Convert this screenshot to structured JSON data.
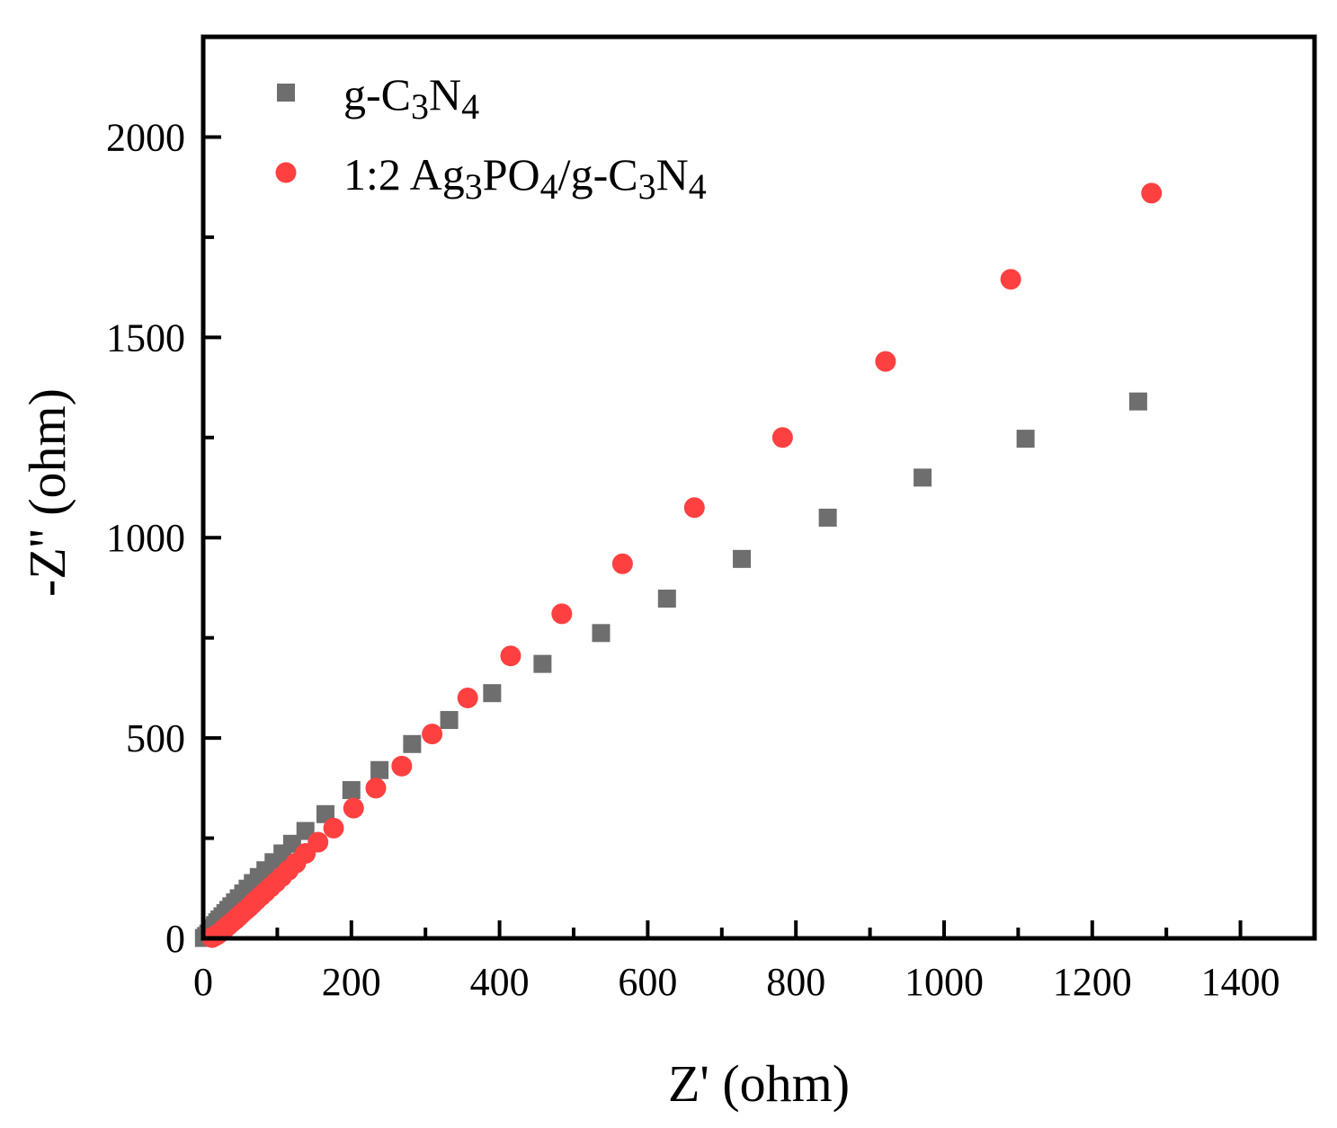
{
  "chart_data": {
    "type": "scatter",
    "title": "",
    "xlabel": "Z' (ohm)",
    "ylabel": "-Z'' (ohm)",
    "xlim": [
      0,
      1500
    ],
    "ylim": [
      0,
      2250
    ],
    "xticks": [
      0,
      200,
      400,
      600,
      800,
      1000,
      1200,
      1400
    ],
    "yticks": [
      0,
      500,
      1000,
      1500,
      2000
    ],
    "legend_position": "top-left",
    "series": [
      {
        "name": "g-C3N4",
        "label_parts": [
          {
            "t": "g-C"
          },
          {
            "t": "3",
            "sub": true
          },
          {
            "t": "N"
          },
          {
            "t": "4",
            "sub": true
          }
        ],
        "marker": "square",
        "color": "#6e6e6e",
        "points": [
          [
            1,
            1
          ],
          [
            4,
            6
          ],
          [
            7,
            12
          ],
          [
            10,
            19
          ],
          [
            13,
            26
          ],
          [
            16,
            33
          ],
          [
            19,
            40
          ],
          [
            22,
            47
          ],
          [
            26,
            55
          ],
          [
            30,
            63
          ],
          [
            34,
            71
          ],
          [
            38,
            80
          ],
          [
            43,
            90
          ],
          [
            48,
            100
          ],
          [
            54,
            112
          ],
          [
            60,
            124
          ],
          [
            67,
            138
          ],
          [
            75,
            153
          ],
          [
            84,
            170
          ],
          [
            95,
            190
          ],
          [
            107,
            212
          ],
          [
            120,
            236
          ],
          [
            138,
            268
          ],
          [
            165,
            310
          ],
          [
            200,
            370
          ],
          [
            238,
            420
          ],
          [
            282,
            485
          ],
          [
            332,
            545
          ],
          [
            390,
            612
          ],
          [
            458,
            685
          ],
          [
            537,
            762
          ],
          [
            626,
            848
          ],
          [
            727,
            947
          ],
          [
            843,
            1050
          ],
          [
            971,
            1150
          ],
          [
            1110,
            1247
          ],
          [
            1262,
            1340
          ]
        ]
      },
      {
        "name": "1:2 Ag3PO4/g-C3N4",
        "label_parts": [
          {
            "t": "1:2 Ag"
          },
          {
            "t": "3",
            "sub": true
          },
          {
            "t": "PO"
          },
          {
            "t": "4",
            "sub": true
          },
          {
            "t": "/g-C"
          },
          {
            "t": "3",
            "sub": true
          },
          {
            "t": "N"
          },
          {
            "t": "4",
            "sub": true
          }
        ],
        "marker": "circle",
        "color": "#ff4040",
        "points": [
          [
            12,
            2
          ],
          [
            15,
            5
          ],
          [
            18,
            8
          ],
          [
            21,
            12
          ],
          [
            24,
            16
          ],
          [
            27,
            21
          ],
          [
            30,
            26
          ],
          [
            33,
            31
          ],
          [
            36,
            36
          ],
          [
            40,
            42
          ],
          [
            44,
            48
          ],
          [
            48,
            55
          ],
          [
            52,
            62
          ],
          [
            57,
            70
          ],
          [
            62,
            78
          ],
          [
            67,
            87
          ],
          [
            72,
            96
          ],
          [
            78,
            106
          ],
          [
            84,
            116
          ],
          [
            91,
            128
          ],
          [
            98,
            140
          ],
          [
            106,
            154
          ],
          [
            115,
            170
          ],
          [
            125,
            188
          ],
          [
            138,
            212
          ],
          [
            155,
            240
          ],
          [
            176,
            275
          ],
          [
            203,
            325
          ],
          [
            233,
            375
          ],
          [
            268,
            430
          ],
          [
            309,
            510
          ],
          [
            357,
            600
          ],
          [
            415,
            705
          ],
          [
            484,
            810
          ],
          [
            566,
            935
          ],
          [
            663,
            1075
          ],
          [
            782,
            1250
          ],
          [
            921,
            1440
          ],
          [
            1090,
            1645
          ],
          [
            1280,
            1860
          ]
        ]
      }
    ]
  }
}
